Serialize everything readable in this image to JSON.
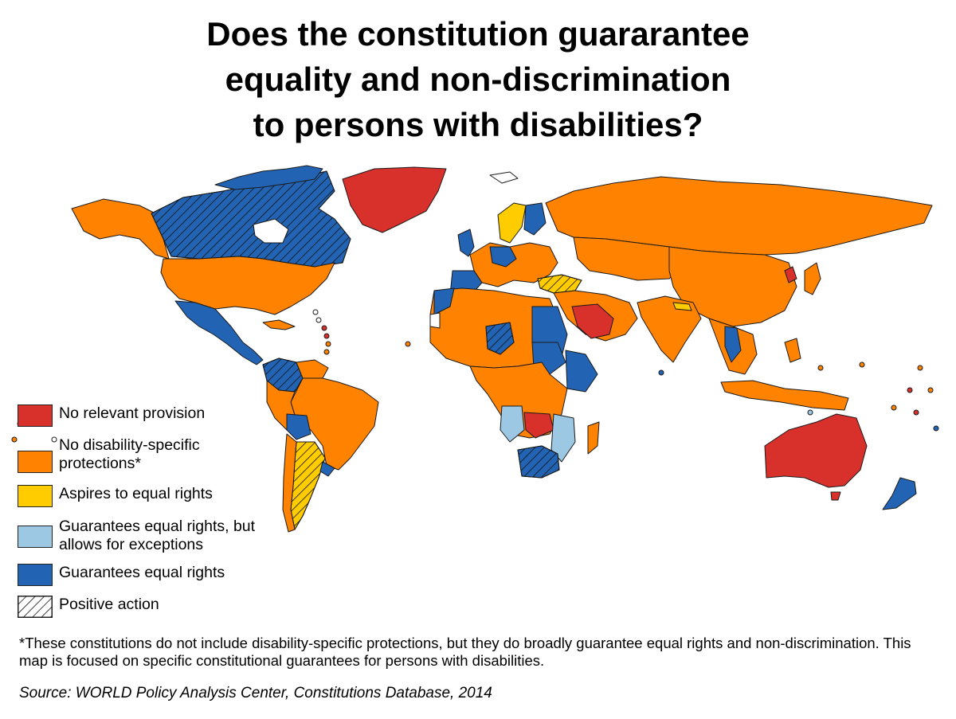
{
  "title_lines": [
    "Does the constitution guararantee",
    "equality and non-discrimination",
    "to persons with disabilities?"
  ],
  "colors": {
    "no_relevant_provision": "#d8302b",
    "no_disability_specific": "#ff8200",
    "aspires": "#ffcc00",
    "exceptions": "#9dc8e3",
    "guarantees": "#2264b3",
    "border": "#1a1a1a"
  },
  "legend": {
    "items": [
      {
        "key": "no_relevant_provision",
        "label": "No relevant provision",
        "color": "#d8302b"
      },
      {
        "key": "no_disability_specific",
        "label": "No disability-specific\nprotections*",
        "color": "#ff8200"
      },
      {
        "key": "aspires",
        "label": "Aspires to equal rights",
        "color": "#ffcc00"
      },
      {
        "key": "exceptions",
        "label": "Guarantees equal rights, but\nallows for exceptions",
        "color": "#9dc8e3"
      },
      {
        "key": "guarantees",
        "label": "Guarantees equal rights",
        "color": "#2264b3"
      },
      {
        "key": "positive_action",
        "label": "Positive action",
        "color": "hatch"
      }
    ]
  },
  "footnote": "*These constitutions do not include disability-specific protections, but they do broadly guarantee equal rights and non-discrimination. This map is focused on specific constitutional guarantees for persons with disabilities.",
  "source": "Source: WORLD Policy Analysis Center, Constitutions Database, 2014"
}
